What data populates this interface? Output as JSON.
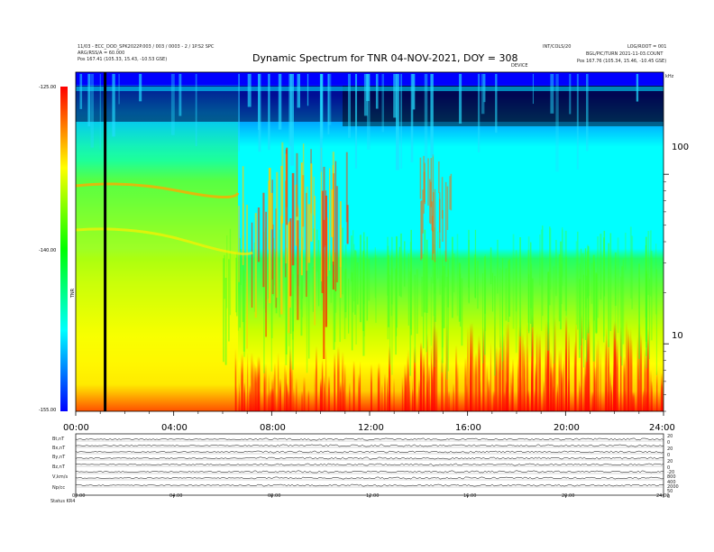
{
  "header": {
    "title": "Dynamic Spectrum for TNR 04-NOV-2021, DOY = 308",
    "left_lines": [
      "11/03 - ECC_DOD_SPK2022P.003 / 003 / 0003 - 2 / 1P.S2 SPC",
      "ARG/RSS/A = 60.000"
    ],
    "left_pos": "Pos    167.41 (105.33, 15.43, -10.53 GSE)",
    "right_lines": [
      "INT/COLS/20",
      "LOG/ROOT = 001",
      "BGL/PIC/TURN 2021-11-03.COUNT"
    ],
    "right_pos": "Pos    167.76 (105.34, 15.46, -10.45 GSE)",
    "marker_text": "DEVICE",
    "corner_text": "kHz"
  },
  "colors": {
    "max_red": "#ff0000",
    "yellow": "#ffff00",
    "green": "#00ff00",
    "cyan": "#00ffff",
    "blue": "#0000ff",
    "dark_blue": "#000080",
    "black": "#000000"
  },
  "colorbar": {
    "top_label": "-125.00",
    "mid_label": "-140.00",
    "bottom_label": "-155.00",
    "unit_label": "TNR"
  },
  "chart_data": {
    "type": "heatmap",
    "title": "Dynamic Spectrum for TNR 04-NOV-2021, DOY = 308",
    "x_ticks": [
      "00:00",
      "04:00",
      "08:00",
      "12:00",
      "16:00",
      "20:00",
      "24:00"
    ],
    "x_range_hours": [
      0,
      24
    ],
    "y_ticks_right": [
      "100",
      "10"
    ],
    "y_tick_values": [
      100,
      10
    ],
    "y_range_khz": [
      4,
      400
    ],
    "y_scale": "log",
    "colorbar_range": [
      -155,
      -125
    ],
    "colorbar_ticks": [
      -125,
      -140,
      -155
    ],
    "data_gap_hour": 1.2
  },
  "panels": {
    "labels": [
      "Bt,nT",
      "Bx,nT",
      "By,nT",
      "Bz,nT",
      "V,km/s",
      "Np/cc"
    ],
    "right_scale_labels": [
      "20",
      "0",
      "20",
      "0",
      "20",
      "0",
      "-20",
      "800",
      "400",
      "2000",
      "50",
      "0"
    ],
    "x_ticks": [
      "00:00",
      "04:00",
      "08:00",
      "12:00",
      "16:00",
      "20:00",
      "24:00"
    ],
    "footer": "Status   KR4"
  }
}
